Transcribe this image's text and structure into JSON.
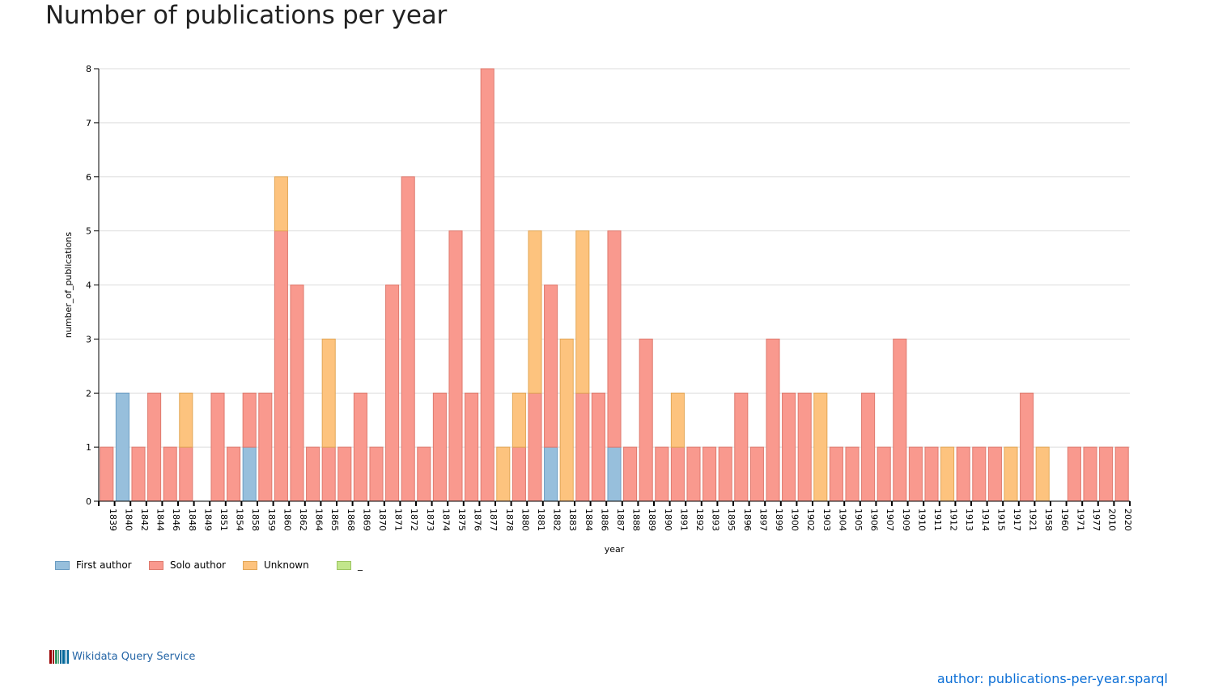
{
  "page": {
    "title": "Number of publications per year",
    "footer_link": "Wikidata Query Service",
    "query_link": "author: publications-per-year.sparql"
  },
  "chart_data": {
    "type": "bar",
    "stacked": true,
    "title": "",
    "xlabel": "year",
    "ylabel": "number_of_publications",
    "ylim": [
      0,
      8
    ],
    "yticks": [
      0,
      1,
      2,
      3,
      4,
      5,
      6,
      7,
      8
    ],
    "grid": true,
    "legend_position": "bottom-left",
    "categories": [
      "1839",
      "1840",
      "1842",
      "1844",
      "1846",
      "1848",
      "1849",
      "1851",
      "1854",
      "1858",
      "1859",
      "1860",
      "1862",
      "1864",
      "1865",
      "1868",
      "1869",
      "1870",
      "1871",
      "1872",
      "1873",
      "1874",
      "1875",
      "1876",
      "1877",
      "1878",
      "1880",
      "1881",
      "1882",
      "1883",
      "1884",
      "1886",
      "1887",
      "1888",
      "1889",
      "1890",
      "1891",
      "1892",
      "1893",
      "1895",
      "1896",
      "1897",
      "1899",
      "1900",
      "1902",
      "1903",
      "1904",
      "1905",
      "1906",
      "1907",
      "1909",
      "1910",
      "1911",
      "1912",
      "1913",
      "1914",
      "1915",
      "1917",
      "1921",
      "1958",
      "1960",
      "1971",
      "1977",
      "2010",
      "2020"
    ],
    "series": [
      {
        "name": "First author",
        "color": "#97bfdc",
        "stroke": "#6a9cc2",
        "values": [
          0,
          2,
          0,
          0,
          0,
          0,
          0,
          0,
          0,
          1,
          0,
          0,
          0,
          0,
          0,
          0,
          0,
          0,
          0,
          0,
          0,
          0,
          0,
          0,
          0,
          0,
          0,
          0,
          1,
          0,
          0,
          0,
          1,
          0,
          0,
          0,
          0,
          0,
          0,
          0,
          0,
          0,
          0,
          0,
          0,
          0,
          0,
          0,
          0,
          0,
          0,
          0,
          0,
          0,
          0,
          0,
          0,
          0,
          0,
          0,
          0,
          0,
          0,
          0,
          0
        ]
      },
      {
        "name": "Solo author",
        "color": "#f9998e",
        "stroke": "#de7a6e",
        "values": [
          1,
          0,
          1,
          2,
          1,
          1,
          0,
          2,
          1,
          1,
          2,
          5,
          4,
          1,
          1,
          1,
          2,
          1,
          4,
          6,
          1,
          2,
          5,
          2,
          8,
          0,
          1,
          2,
          3,
          0,
          2,
          2,
          4,
          1,
          3,
          1,
          1,
          1,
          1,
          1,
          2,
          1,
          3,
          2,
          2,
          0,
          1,
          1,
          2,
          1,
          3,
          1,
          1,
          0,
          1,
          1,
          1,
          0,
          2,
          0,
          0,
          1,
          1,
          1,
          1
        ]
      },
      {
        "name": "Unknown",
        "color": "#fdc37e",
        "stroke": "#e2a656",
        "values": [
          0,
          0,
          0,
          0,
          0,
          1,
          0,
          0,
          0,
          0,
          0,
          1,
          0,
          0,
          2,
          0,
          0,
          0,
          0,
          0,
          0,
          0,
          0,
          0,
          0,
          1,
          1,
          3,
          0,
          3,
          3,
          0,
          0,
          0,
          0,
          0,
          1,
          0,
          0,
          0,
          0,
          0,
          0,
          0,
          0,
          2,
          0,
          0,
          0,
          0,
          0,
          0,
          0,
          1,
          0,
          0,
          0,
          1,
          0,
          1,
          0,
          0,
          0,
          0,
          0
        ]
      },
      {
        "name": "_",
        "color": "#c2e68c",
        "stroke": "#9cc562",
        "values": [
          0,
          0,
          0,
          0,
          0,
          0,
          0,
          0,
          0,
          0,
          0,
          0,
          0,
          0,
          0,
          0,
          0,
          0,
          0,
          0,
          0,
          0,
          0,
          0,
          0,
          0,
          0,
          0,
          0,
          0,
          0,
          0,
          0,
          0,
          0,
          0,
          0,
          0,
          0,
          0,
          0,
          0,
          0,
          0,
          0,
          0,
          0,
          0,
          0,
          0,
          0,
          0,
          0,
          0,
          0,
          0,
          0,
          0,
          0,
          0,
          0,
          0,
          0,
          0,
          0
        ]
      }
    ]
  },
  "logo_colors": [
    "#990000",
    "#339966",
    "#006699"
  ]
}
